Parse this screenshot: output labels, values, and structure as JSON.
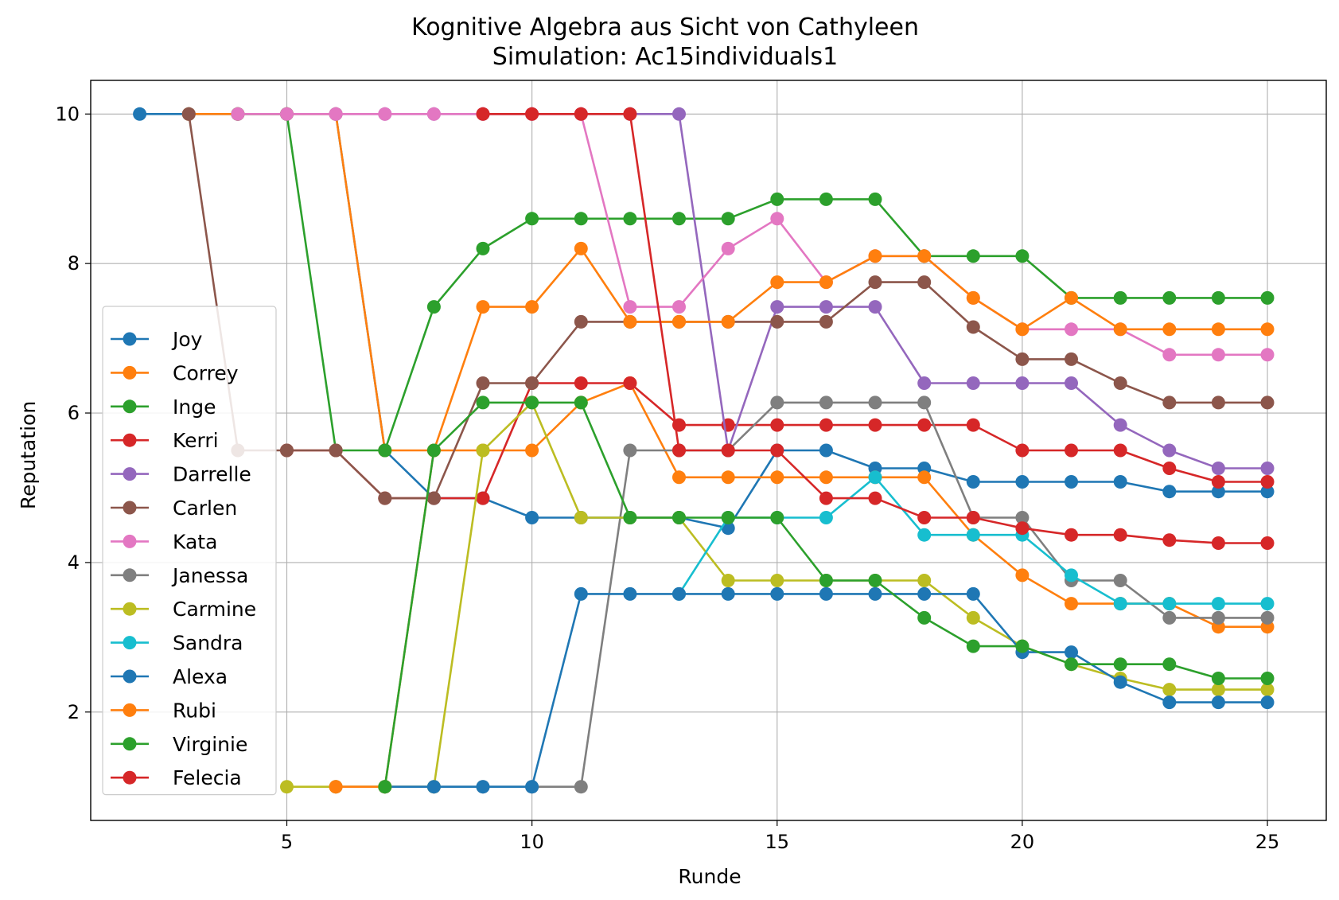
{
  "chart_data": {
    "type": "line",
    "title": "Kognitive Algebra aus Sicht von Cathyleen",
    "subtitle": "Simulation: Ac15individuals1",
    "xlabel": "Runde",
    "ylabel": "Reputation",
    "xlim": [
      1,
      26.2
    ],
    "ylim": [
      0.55,
      10.45
    ],
    "xticks": [
      5,
      10,
      15,
      20,
      25
    ],
    "yticks": [
      2,
      4,
      6,
      8,
      10
    ],
    "grid": true,
    "legend_position": "lower-left",
    "series": [
      {
        "name": "Joy",
        "color": "#1f77b4",
        "x": [
          2,
          3,
          4,
          5,
          6,
          7,
          8,
          9,
          10,
          11,
          12,
          13,
          14,
          15,
          16,
          17,
          18,
          19,
          20,
          21,
          22,
          23,
          24,
          25
        ],
        "values": [
          10,
          10,
          10,
          10,
          10,
          5.5,
          4.86,
          4.86,
          4.6,
          4.6,
          4.6,
          4.6,
          4.46,
          5.5,
          5.5,
          5.26,
          5.26,
          5.08,
          5.08,
          5.08,
          5.08,
          4.95,
          4.95,
          4.95
        ]
      },
      {
        "name": "Correy",
        "color": "#ff7f0e",
        "x": [
          3,
          4,
          5,
          6,
          7,
          8,
          9,
          10,
          11,
          12,
          13,
          14,
          15,
          16,
          17,
          18,
          19,
          20,
          21,
          22,
          23,
          24,
          25
        ],
        "values": [
          10,
          10,
          10,
          10,
          5.5,
          5.5,
          5.5,
          5.5,
          6.14,
          6.4,
          5.14,
          5.14,
          5.14,
          5.14,
          5.14,
          5.14,
          4.37,
          3.83,
          3.45,
          3.45,
          3.45,
          3.14,
          3.14
        ]
      },
      {
        "name": "Inge",
        "color": "#2ca02c",
        "x": [
          4,
          5,
          6,
          7,
          8,
          9,
          10,
          11,
          12,
          13,
          14,
          15,
          16,
          17,
          18,
          19,
          20,
          21,
          22,
          23,
          24,
          25
        ],
        "values": [
          10,
          10,
          5.5,
          5.5,
          7.42,
          8.2,
          8.6,
          8.6,
          8.6,
          8.6,
          8.6,
          8.86,
          8.86,
          8.86,
          8.1,
          8.1,
          8.1,
          7.54,
          7.54,
          7.54,
          7.54,
          7.54
        ]
      },
      {
        "name": "Kerri",
        "color": "#d62728",
        "x": [
          5,
          6,
          7,
          8,
          9,
          10,
          11,
          12,
          13,
          14,
          15,
          16,
          17,
          18,
          19,
          20,
          21,
          22,
          23,
          24,
          25
        ],
        "values": [
          5.5,
          5.5,
          4.86,
          4.86,
          4.86,
          6.4,
          6.4,
          6.4,
          5.84,
          5.84,
          5.84,
          5.84,
          5.84,
          5.84,
          5.84,
          5.5,
          5.5,
          5.5,
          5.26,
          5.08,
          5.08
        ]
      },
      {
        "name": "Darrelle",
        "color": "#9467bd",
        "x": [
          6,
          7,
          8,
          9,
          10,
          11,
          12,
          13,
          14,
          15,
          16,
          17,
          18,
          19,
          20,
          21,
          22,
          23,
          24,
          25
        ],
        "values": [
          10,
          10,
          10,
          10,
          10,
          10,
          10,
          10,
          5.5,
          7.42,
          7.42,
          7.42,
          6.4,
          6.4,
          6.4,
          6.4,
          5.84,
          5.5,
          5.26,
          5.26
        ]
      },
      {
        "name": "Carlen",
        "color": "#8c564b",
        "x": [
          3,
          4,
          5,
          6,
          7,
          8,
          9,
          10,
          11,
          12,
          13,
          14,
          15,
          16,
          17,
          18,
          19,
          20,
          21,
          22,
          23,
          24,
          25
        ],
        "values": [
          10,
          5.5,
          5.5,
          5.5,
          4.86,
          4.86,
          6.4,
          6.4,
          7.22,
          7.22,
          7.22,
          7.22,
          7.22,
          7.22,
          7.75,
          7.75,
          7.15,
          6.72,
          6.72,
          6.4,
          6.14,
          6.14,
          6.14
        ]
      },
      {
        "name": "Kata",
        "color": "#e377c2",
        "x": [
          4,
          5,
          6,
          7,
          8,
          9,
          10,
          11,
          12,
          13,
          14,
          15,
          16,
          17,
          18,
          19,
          20,
          21,
          22,
          23,
          24,
          25
        ],
        "values": [
          10,
          10,
          10,
          10,
          10,
          10,
          10,
          10,
          7.42,
          7.42,
          8.2,
          8.6,
          7.75,
          8.1,
          8.1,
          7.54,
          7.12,
          7.12,
          7.12,
          6.78,
          6.78,
          6.78
        ]
      },
      {
        "name": "Janessa",
        "color": "#7f7f7f",
        "x": [
          6,
          7,
          8,
          9,
          10,
          11,
          12,
          13,
          14,
          15,
          16,
          17,
          18,
          19,
          20,
          21,
          22,
          23,
          24,
          25
        ],
        "values": [
          1,
          1,
          1,
          1,
          1,
          1,
          5.5,
          5.5,
          5.5,
          6.14,
          6.14,
          6.14,
          6.14,
          4.6,
          4.6,
          3.76,
          3.76,
          3.26,
          3.26,
          3.26
        ]
      },
      {
        "name": "Carmine",
        "color": "#bcbd22",
        "x": [
          5,
          6,
          7,
          8,
          9,
          10,
          11,
          12,
          13,
          14,
          15,
          16,
          17,
          18,
          19,
          20,
          21,
          22,
          23,
          24,
          25
        ],
        "values": [
          1,
          1,
          1,
          1,
          5.5,
          6.14,
          4.6,
          4.6,
          4.6,
          3.76,
          3.76,
          3.76,
          3.76,
          3.76,
          3.26,
          2.88,
          2.64,
          2.45,
          2.3,
          2.3,
          2.3
        ]
      },
      {
        "name": "Sandra",
        "color": "#17becf",
        "x": [
          13,
          14,
          15,
          16,
          17,
          18,
          19,
          20,
          21,
          22,
          23,
          24,
          25
        ],
        "values": [
          3.58,
          4.6,
          4.6,
          4.6,
          5.14,
          4.37,
          4.37,
          4.37,
          3.83,
          3.45,
          3.45,
          3.45,
          3.45
        ]
      },
      {
        "name": "Alexa",
        "color": "#1f77b4",
        "x": [
          7,
          8,
          9,
          10,
          11,
          12,
          13,
          14,
          15,
          16,
          17,
          18,
          19,
          20,
          21,
          22,
          23,
          24,
          25
        ],
        "values": [
          1,
          1,
          1,
          1,
          3.58,
          3.58,
          3.58,
          3.58,
          3.58,
          3.58,
          3.58,
          3.58,
          3.58,
          2.8,
          2.8,
          2.4,
          2.13,
          2.13,
          2.13
        ]
      },
      {
        "name": "Rubi",
        "color": "#ff7f0e",
        "x": [
          6,
          7,
          8,
          9,
          10,
          11,
          12,
          13,
          14,
          15,
          16,
          17,
          18,
          19,
          20,
          21,
          22,
          23,
          24,
          25
        ],
        "values": [
          1,
          1,
          5.5,
          7.42,
          7.42,
          8.2,
          7.22,
          7.22,
          7.22,
          7.75,
          7.75,
          8.1,
          8.1,
          7.54,
          7.12,
          7.54,
          7.12,
          7.12,
          7.12,
          7.12
        ]
      },
      {
        "name": "Virginie",
        "color": "#2ca02c",
        "x": [
          7,
          8,
          9,
          10,
          11,
          12,
          13,
          14,
          15,
          16,
          17,
          18,
          19,
          20,
          21,
          22,
          23,
          24,
          25
        ],
        "values": [
          1,
          5.5,
          6.14,
          6.14,
          6.14,
          4.6,
          4.6,
          4.6,
          4.6,
          3.76,
          3.76,
          3.26,
          2.88,
          2.88,
          2.64,
          2.64,
          2.64,
          2.45,
          2.45
        ]
      },
      {
        "name": "Felecia",
        "color": "#d62728",
        "x": [
          9,
          10,
          11,
          12,
          13,
          14,
          15,
          16,
          17,
          18,
          19,
          20,
          21,
          22,
          23,
          24,
          25
        ],
        "values": [
          10,
          10,
          10,
          10,
          5.5,
          5.5,
          5.5,
          4.86,
          4.86,
          4.6,
          4.6,
          4.46,
          4.37,
          4.37,
          4.3,
          4.26,
          4.26
        ]
      }
    ]
  }
}
